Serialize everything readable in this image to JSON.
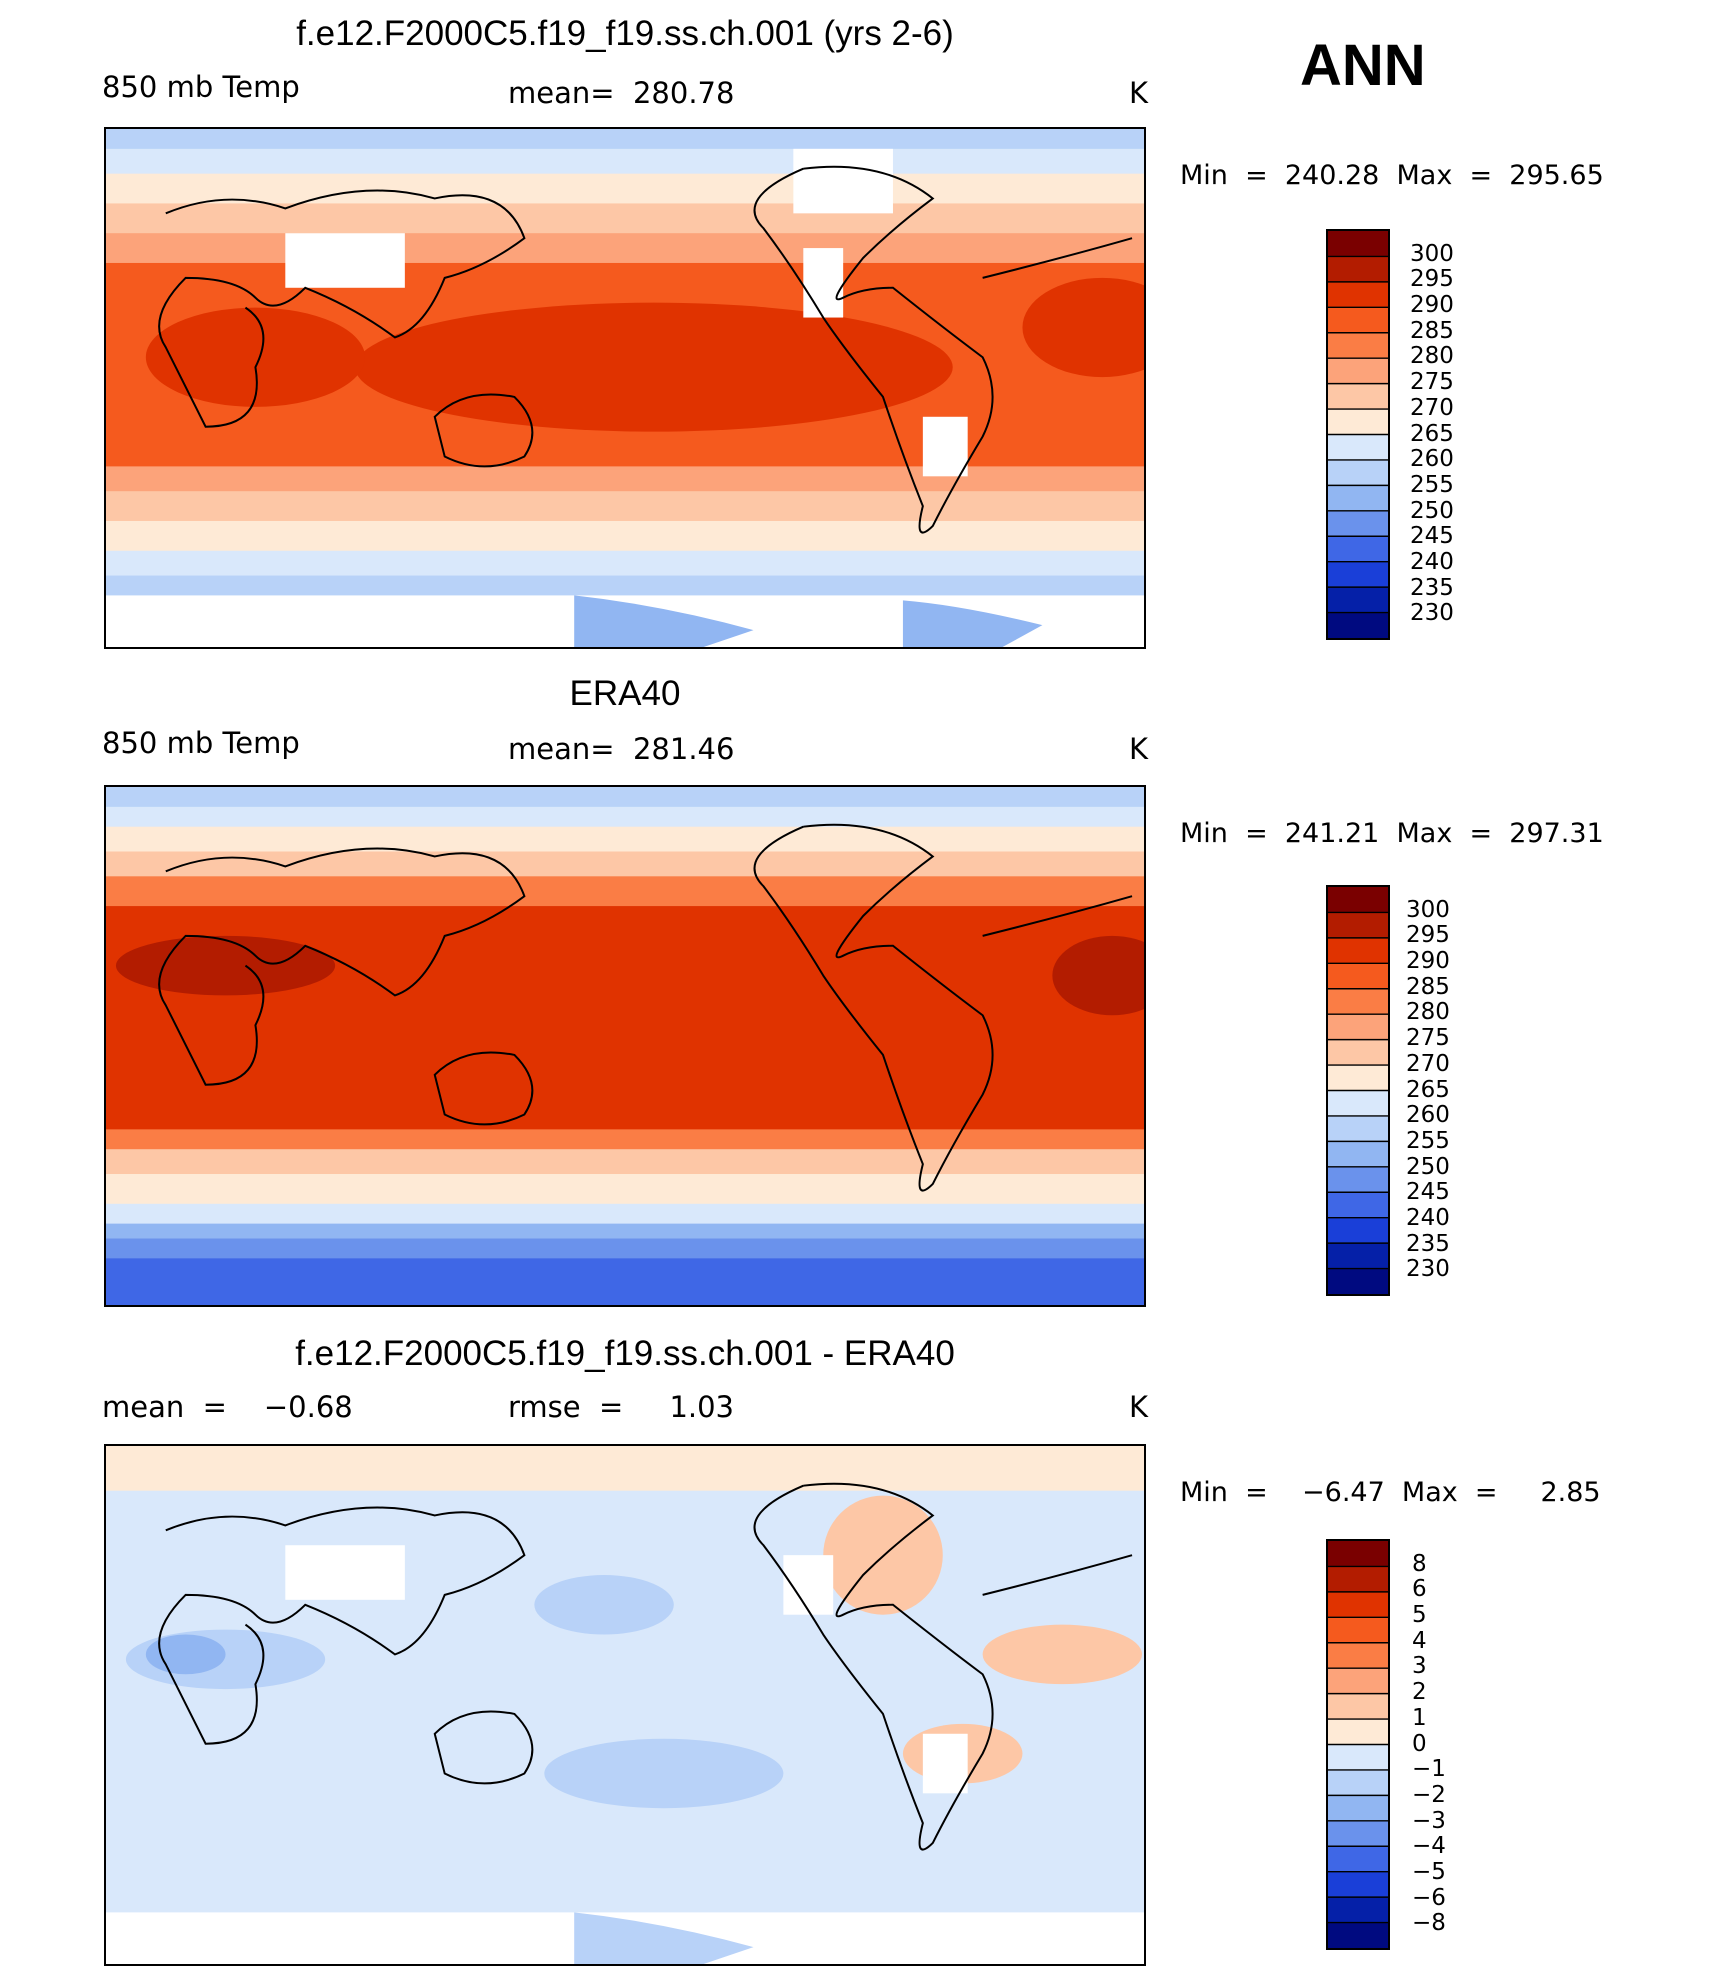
{
  "season": "ANN",
  "panels": [
    {
      "title": "f.e12.F2000C5.f19_f19.ss.ch.001 (yrs 2-6)",
      "left_label": "850 mb Temp",
      "center_label": "mean=  280.78",
      "units": "K",
      "minmax": "Min  =  240.28  Max  =  295.65",
      "colorbar_ticks": [
        "300",
        "295",
        "290",
        "285",
        "280",
        "275",
        "270",
        "265",
        "260",
        "255",
        "250",
        "245",
        "240",
        "235",
        "230"
      ]
    },
    {
      "title": "ERA40",
      "left_label": "850 mb Temp",
      "center_label": "mean=  281.46",
      "units": "K",
      "minmax": "Min  =  241.21  Max  =  297.31",
      "colorbar_ticks": [
        "300",
        "295",
        "290",
        "285",
        "280",
        "275",
        "270",
        "265",
        "260",
        "255",
        "250",
        "245",
        "240",
        "235",
        "230"
      ]
    },
    {
      "title": "f.e12.F2000C5.f19_f19.ss.ch.001 - ERA40",
      "left_label": "mean  =    −0.68",
      "center_label": "rmse  =     1.03",
      "units": "K",
      "minmax": "Min  =    −6.47  Max  =     2.85",
      "colorbar_ticks": [
        "8",
        "6",
        "5",
        "4",
        "3",
        "2",
        "1",
        "0",
        "−1",
        "−2",
        "−3",
        "−4",
        "−5",
        "−6",
        "−8"
      ]
    }
  ],
  "colors": {
    "temp_scale": [
      "#7a0000",
      "#b31c00",
      "#e03300",
      "#f55a1e",
      "#fa7d45",
      "#fca37a",
      "#fdc7a6",
      "#feead6",
      "#d9e8fb",
      "#b8d2f8",
      "#91b6f2",
      "#6a92ec",
      "#3f67e6",
      "#1a3fd8",
      "#0520a8",
      "#000a80"
    ],
    "diff_scale": [
      "#7a0000",
      "#b31c00",
      "#e03300",
      "#f55a1e",
      "#fa7d45",
      "#fca37a",
      "#fdc7a6",
      "#feead6",
      "#d9e8fb",
      "#b8d2f8",
      "#91b6f2",
      "#6a92ec",
      "#3f67e6",
      "#1a3fd8",
      "#0520a8",
      "#000a80"
    ]
  },
  "chart_data": [
    {
      "type": "heatmap",
      "title": "f.e12.F2000C5.f19_f19.ss.ch.001 (yrs 2-6)",
      "field": "850 mb Temp",
      "units": "K",
      "mean": 280.78,
      "min": 240.28,
      "max": 295.65,
      "contour_levels": [
        230,
        235,
        240,
        245,
        250,
        255,
        260,
        265,
        270,
        275,
        280,
        285,
        290,
        295,
        300
      ]
    },
    {
      "type": "heatmap",
      "title": "ERA40",
      "field": "850 mb Temp",
      "units": "K",
      "mean": 281.46,
      "min": 241.21,
      "max": 297.31,
      "contour_levels": [
        230,
        235,
        240,
        245,
        250,
        255,
        260,
        265,
        270,
        275,
        280,
        285,
        290,
        295,
        300
      ]
    },
    {
      "type": "heatmap",
      "title": "f.e12.F2000C5.f19_f19.ss.ch.001 - ERA40",
      "units": "K",
      "mean": -0.68,
      "rmse": 1.03,
      "min": -6.47,
      "max": 2.85,
      "contour_levels": [
        -8,
        -6,
        -5,
        -4,
        -3,
        -2,
        -1,
        0,
        1,
        2,
        3,
        4,
        5,
        6,
        8
      ]
    }
  ]
}
